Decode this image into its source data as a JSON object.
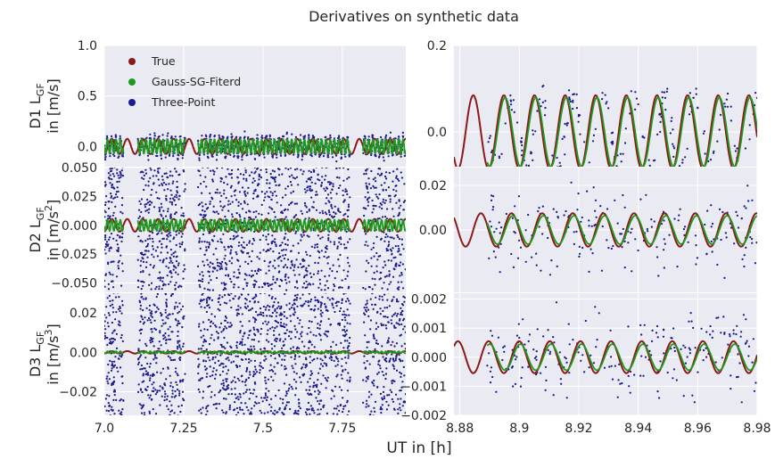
{
  "figure": {
    "title": "Derivatives on synthetic data",
    "xlabel": "UT in [h]",
    "legend": [
      {
        "label": "True",
        "color": "#8b1a1a"
      },
      {
        "label": "Gauss-SG-Fiterd",
        "color": "#1f9a1f"
      },
      {
        "label": "Three-Point",
        "color": "#1c1c8c"
      }
    ],
    "style": {
      "background": "#eaeaf2",
      "grid": "#ffffff"
    }
  },
  "chart_data": [
    {
      "type": "scatter",
      "panel": "left-top",
      "ylabel_line1": "D1 L",
      "ylabel_sub": "GF",
      "ylabel_line2": "in [m/s]",
      "xlim": [
        7.0,
        7.95
      ],
      "ylim": [
        -0.2,
        1.0
      ],
      "yticks": [
        "1.0",
        "0.5",
        "0.0"
      ],
      "xticks": [],
      "true_amp": 0.075,
      "true_period": 0.0975,
      "gauss_amp": 0.07,
      "three_point_spread": 0.06,
      "gaps": [
        [
          7.06,
          7.105
        ],
        [
          7.255,
          7.295
        ],
        [
          7.775,
          7.815
        ]
      ]
    },
    {
      "type": "scatter",
      "panel": "left-mid",
      "ylabel_line1": "D2 L",
      "ylabel_sub": "GF",
      "ylabel_line2": "in [m/s",
      "ylabel_sup": "2",
      "ylabel_end": "]",
      "xlim": [
        7.0,
        7.95
      ],
      "ylim": [
        -0.058,
        0.05
      ],
      "yticks": [
        "0.050",
        "0.025",
        "0.000",
        "−0.025",
        "−0.050"
      ],
      "xticks": [],
      "true_amp": 0.0055,
      "gauss_amp": 0.0048,
      "three_point_spread": 0.05
    },
    {
      "type": "scatter",
      "panel": "left-bottom",
      "ylabel_line1": "D3 L",
      "ylabel_sub": "GF",
      "ylabel_line2": "in [m/s",
      "ylabel_sup": "3",
      "ylabel_end": "]",
      "xlim": [
        7.0,
        7.95
      ],
      "ylim": [
        -0.032,
        0.03
      ],
      "yticks": [
        "0.02",
        "0.00",
        "−0.02"
      ],
      "xticks": [
        "7.0",
        "7.25",
        "7.5",
        "7.75"
      ],
      "true_amp": 0.0006,
      "gauss_amp": 0.0005,
      "three_point_spread": 0.032
    },
    {
      "type": "scatter",
      "panel": "right-top",
      "xlim": [
        8.878,
        8.98
      ],
      "ylim": [
        -0.08,
        0.2
      ],
      "yticks": [
        "0.2",
        "0.0"
      ],
      "xticks": [],
      "true_amp": 0.085,
      "true_period": 0.0103,
      "true_phase": 8.8845,
      "gauss_amp": 0.08,
      "gauss_start": 8.889,
      "three_point_spread": 0.035
    },
    {
      "type": "scatter",
      "panel": "right-mid",
      "xlim": [
        8.878,
        8.98
      ],
      "ylim": [
        -0.028,
        0.028
      ],
      "yticks": [
        "0.02",
        "0.00"
      ],
      "xticks": [],
      "true_amp": 0.0075,
      "gauss_amp": 0.0064,
      "three_point_spread": 0.018
    },
    {
      "type": "scatter",
      "panel": "right-bottom",
      "xlim": [
        8.878,
        8.98
      ],
      "ylim": [
        -0.002,
        0.0022
      ],
      "yticks": [
        "0.002",
        "0.001",
        "0.000",
        "−0.001",
        "−0.002"
      ],
      "xticks": [
        "8.88",
        "8.9",
        "8.92",
        "8.94",
        "8.96",
        "8.98"
      ],
      "true_amp": 0.00055,
      "gauss_amp": 0.00045,
      "three_point_spread": 0.0012
    }
  ]
}
